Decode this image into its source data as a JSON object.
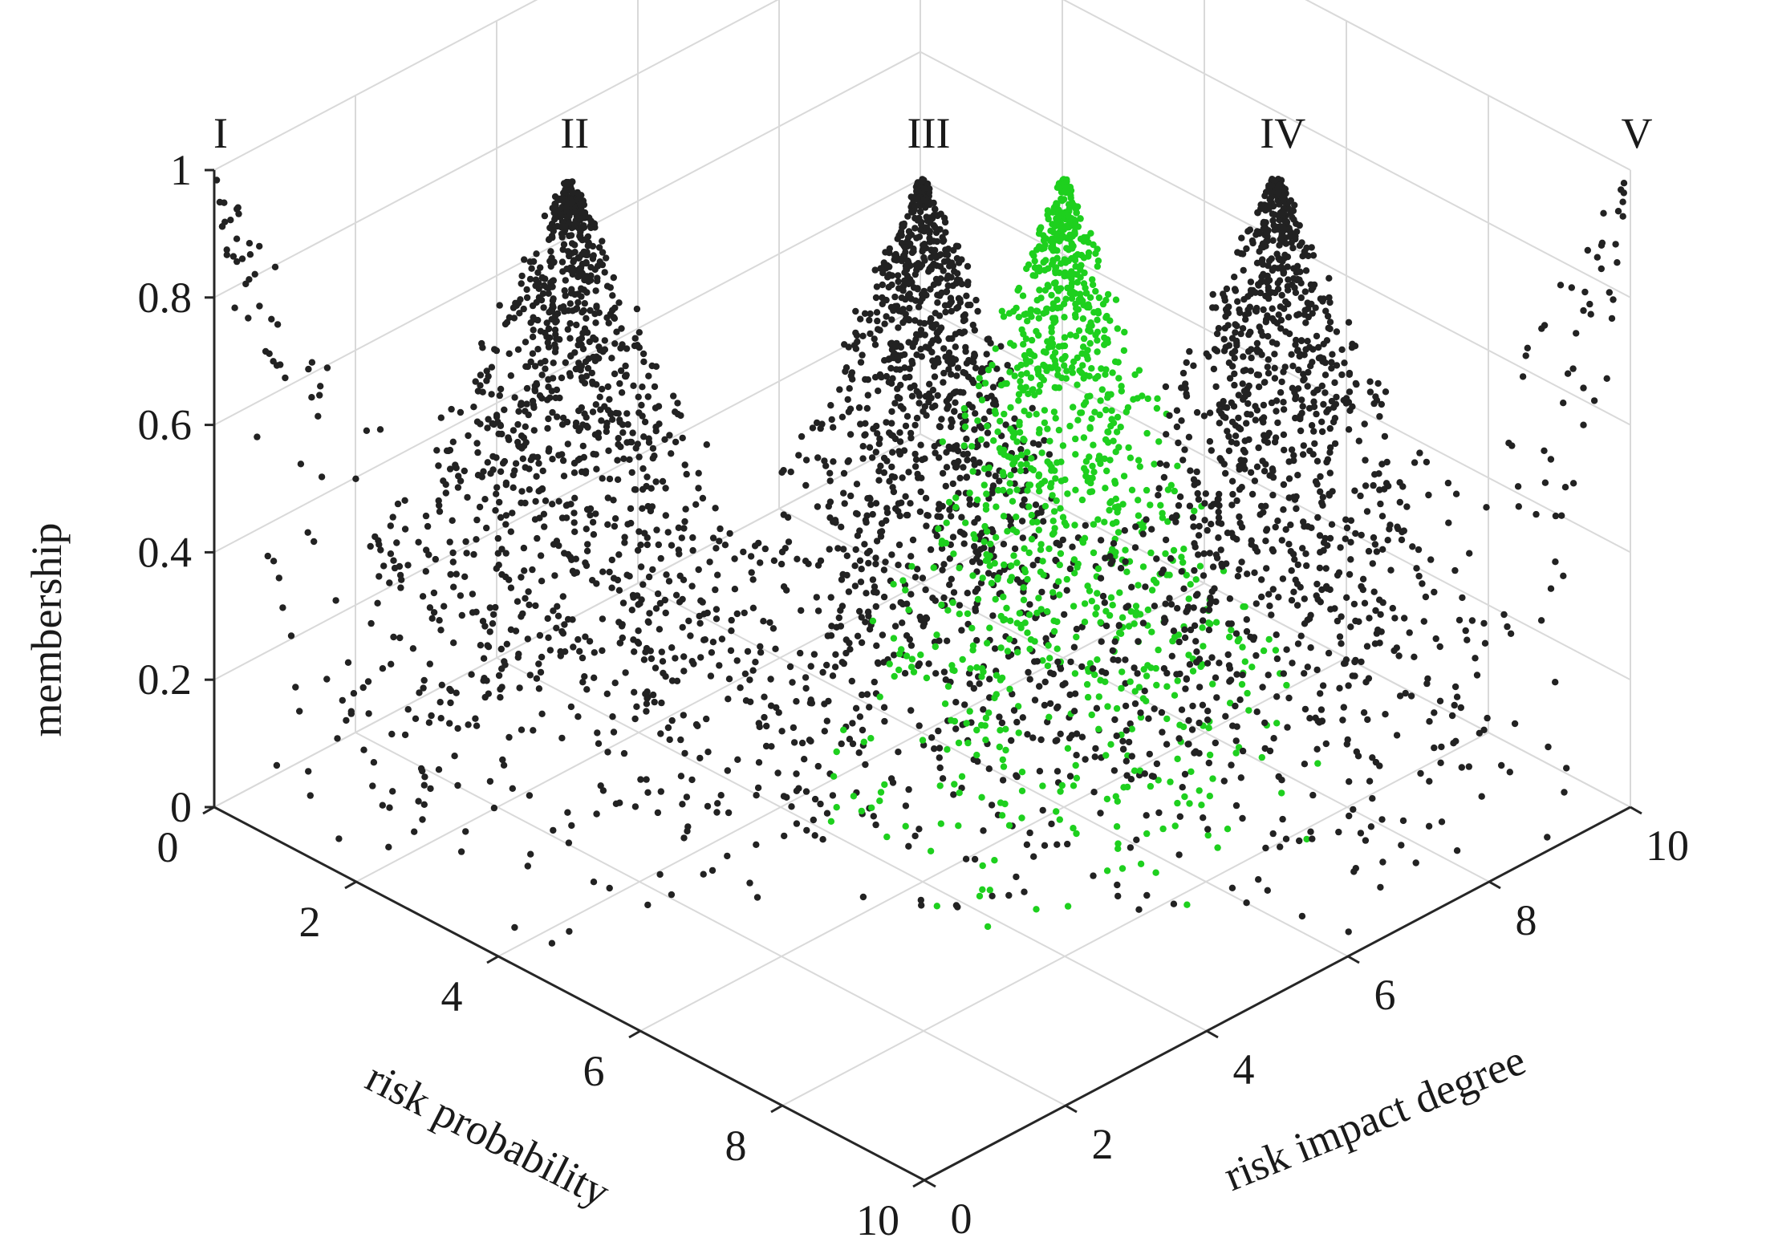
{
  "chart_data": {
    "type": "scatter3d",
    "title": "",
    "xlabel": "risk  probability",
    "ylabel": "risk impact degree",
    "zlabel": "membership",
    "xlim": [
      0,
      10
    ],
    "ylim": [
      0,
      10
    ],
    "zlim": [
      0,
      1
    ],
    "xticks": [
      "0",
      "2",
      "4",
      "6",
      "8",
      "10"
    ],
    "yticks": [
      "0",
      "2",
      "4",
      "6",
      "8",
      "10"
    ],
    "zticks": [
      "0",
      "0.2",
      "0.4",
      "0.6",
      "0.8",
      "1"
    ],
    "grid": true,
    "colors": {
      "black_points": "#222222",
      "green_points": "#1ed01e",
      "grid": "#d9d9d9",
      "axes": "#262626"
    },
    "series": [
      {
        "label": "I",
        "color": "#222222",
        "center": [
          0,
          0
        ],
        "peak": 1,
        "spread": 4.0,
        "points": 330
      },
      {
        "label": "II",
        "color": "#222222",
        "center": [
          2.5,
          2.5
        ],
        "peak": 1,
        "spread": 3.2,
        "points": 1200
      },
      {
        "label": "III",
        "color": "#222222",
        "center": [
          5,
          5
        ],
        "peak": 1,
        "spread": 3.0,
        "points": 1250
      },
      {
        "label": "",
        "color": "#1ed01e",
        "center": [
          6,
          6
        ],
        "peak": 1,
        "spread": 2.8,
        "points": 1100
      },
      {
        "label": "IV",
        "color": "#222222",
        "center": [
          7.5,
          7.5
        ],
        "peak": 1,
        "spread": 3.2,
        "points": 1200
      },
      {
        "label": "V",
        "color": "#222222",
        "center": [
          10,
          10
        ],
        "peak": 1,
        "spread": 4.0,
        "points": 330
      }
    ]
  }
}
